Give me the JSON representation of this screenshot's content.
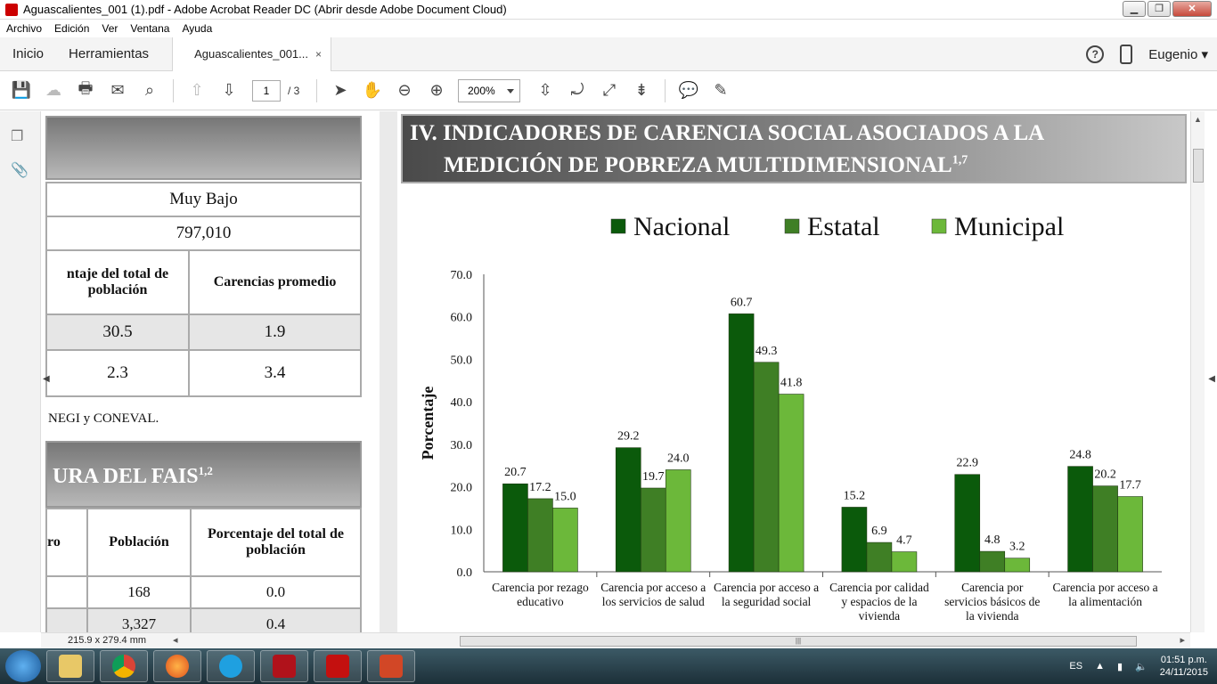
{
  "window": {
    "title": "Aguascalientes_001 (1).pdf - Adobe Acrobat Reader DC (Abrir desde Adobe Document Cloud)"
  },
  "menu": [
    "Archivo",
    "Edición",
    "Ver",
    "Ventana",
    "Ayuda"
  ],
  "tabs": {
    "home": "Inicio",
    "tools": "Herramientas",
    "doc": "Aguascalientes_001...",
    "close": "×",
    "user": "Eugenio"
  },
  "toolbar": {
    "page_current": "1",
    "page_total": "/ 3",
    "zoom": "200%"
  },
  "left_page": {
    "level_label": "Muy Bajo",
    "population_value": "797,010",
    "header_pct": "ntaje del total de población",
    "header_avg": "Carencias promedio",
    "row1": [
      "30.5",
      "1.9"
    ],
    "row2": [
      "2.3",
      "3.4"
    ],
    "source": "NEGI y CONEVAL.",
    "section_title": "URA DEL FAIS",
    "section_sup": "1,2",
    "table2_headers": [
      "ro",
      "Población",
      "Porcentaje del total de población"
    ],
    "table2_rows": [
      [
        "",
        "168",
        "0.0"
      ],
      [
        "",
        "3,327",
        "0.4"
      ]
    ]
  },
  "right_page": {
    "heading_line1": "IV. INDICADORES DE CARENCIA SOCIAL ASOCIADOS A LA",
    "heading_line2": "MEDICIÓN DE POBREZA MULTIDIMENSIONAL",
    "heading_sup": "1,7"
  },
  "chart_data": {
    "type": "bar",
    "categories": [
      [
        "Carencia por rezago",
        "educativo"
      ],
      [
        "Carencia por acceso a",
        "los servicios de salud"
      ],
      [
        "Carencia por acceso a",
        "la seguridad social"
      ],
      [
        "Carencia por calidad",
        "y espacios de la",
        "vivienda"
      ],
      [
        "Carencia por",
        "servicios básicos de",
        "la vivienda"
      ],
      [
        "Carencia por acceso a",
        "la alimentación"
      ]
    ],
    "series": [
      {
        "name": "Nacional",
        "values": [
          20.7,
          29.2,
          60.7,
          15.2,
          22.9,
          24.8
        ],
        "color": "#0b5a0b",
        "label_text": [
          "20.7",
          "29.2",
          "60.7",
          "15.2",
          "22.9",
          "24.8"
        ]
      },
      {
        "name": "Estatal",
        "values": [
          17.2,
          19.7,
          49.3,
          6.9,
          4.8,
          20.2
        ],
        "color": "#3f7f25",
        "label_text": [
          "17.2",
          "19.7",
          "49.3",
          "6.9",
          "4.8",
          "20.2"
        ]
      },
      {
        "name": "Municipal",
        "values": [
          15.0,
          24.0,
          41.8,
          4.7,
          3.2,
          17.7
        ],
        "color": "#6cb83a",
        "label_text": [
          "15.0",
          "24.0",
          "41.8",
          "4.7",
          "3.2",
          "17.7"
        ]
      }
    ],
    "ylabel": "Porcentaje",
    "ylim": [
      0,
      70
    ],
    "yticks": [
      "0.0",
      "10.0",
      "20.0",
      "30.0",
      "40.0",
      "50.0",
      "60.0",
      "70.0"
    ],
    "legend_position": "top"
  },
  "status": {
    "page_size": "215.9 x 279.4 mm"
  },
  "taskbar": {
    "lang": "ES",
    "time": "01:51 p.m.",
    "date": "24/11/2015"
  }
}
